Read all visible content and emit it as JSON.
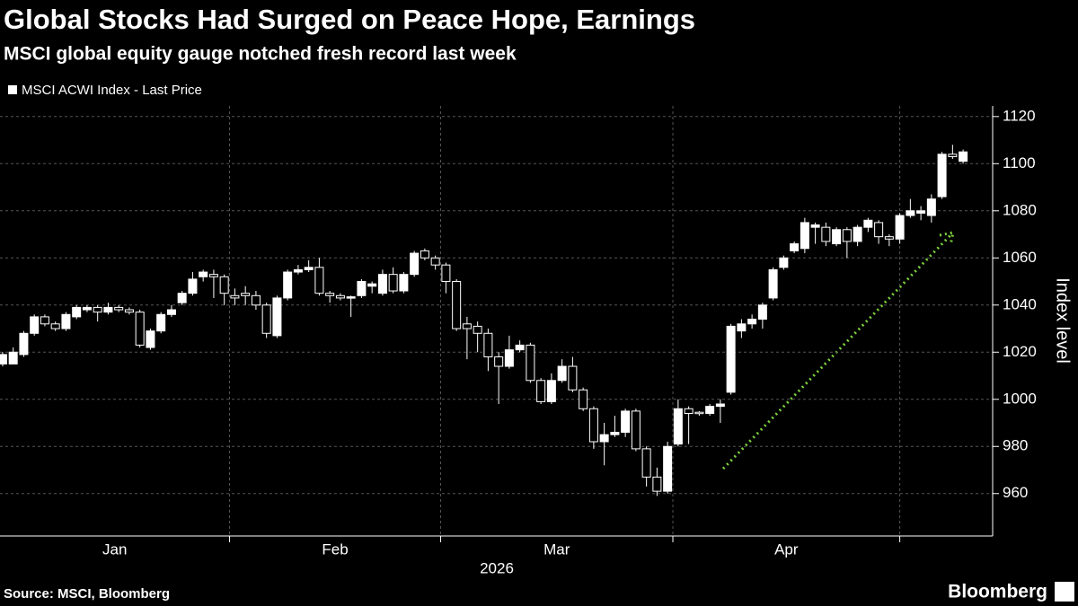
{
  "chart_data": {
    "type": "candlestick",
    "title": "Global Stocks Had Surged on Peace Hope, Earnings",
    "subtitle": "MSCI global equity gauge notched fresh record last week",
    "legend": "MSCI ACWI Index - Last Price",
    "y_label": "Index level",
    "x_label": "2026",
    "source": "Source: MSCI, Bloomberg",
    "brand": "Bloomberg",
    "color": "#ffffff",
    "grid": true,
    "ylim": [
      942,
      1124.5
    ],
    "yticks": [
      960,
      980,
      1000,
      1020,
      1040,
      1060,
      1080,
      1100,
      1120
    ],
    "xlim": [
      -0.25,
      93.8
    ],
    "xticks": [
      21.5,
      41.5,
      63.5,
      85
    ],
    "month_labels": [
      "Jan",
      "Feb",
      "Mar",
      "Apr"
    ],
    "open": [
      1015,
      1015,
      1019,
      1028,
      1035,
      1032,
      1030,
      1035,
      1038,
      1039,
      1037,
      1039,
      1038,
      1037,
      1022,
      1029,
      1036,
      1041,
      1045,
      1052,
      1053,
      1052,
      1044,
      1045,
      1044,
      1040,
      1027,
      1043,
      1054,
      1055,
      1056,
      1045,
      1044,
      1043,
      1044,
      1048,
      1045,
      1053,
      1046,
      1053,
      1063,
      1060,
      1057,
      1050,
      1032,
      1031,
      1028,
      1018,
      1014,
      1021,
      1023,
      1008,
      999,
      1008,
      1014,
      1004,
      996,
      982,
      985,
      986,
      995,
      979,
      967,
      961,
      981,
      996,
      994.5,
      994,
      997,
      1003,
      1029,
      1032,
      1034,
      1043,
      1056,
      1063,
      1064,
      1073,
      1073,
      1066,
      1072,
      1067,
      1073,
      1075,
      1069,
      1068,
      1078,
      1079,
      1078,
      1086,
      1104,
      1101
    ],
    "high": [
      1020,
      1022,
      1029,
      1036,
      1036,
      1033,
      1037,
      1040,
      1040,
      1040,
      1041,
      1040,
      1039,
      1038,
      1030,
      1037,
      1040,
      1046,
      1054,
      1055,
      1055,
      1053,
      1047,
      1048,
      1046,
      1041,
      1044,
      1055,
      1057,
      1059,
      1060,
      1046,
      1045,
      1044,
      1051,
      1050,
      1055,
      1056,
      1054,
      1063,
      1064,
      1061,
      1058,
      1051,
      1035,
      1033,
      1030,
      1020,
      1027,
      1025,
      1024,
      1009,
      1011,
      1017,
      1018,
      1005,
      997,
      990,
      993,
      996,
      996,
      980,
      971,
      982,
      1000,
      997,
      995,
      998,
      1000,
      1032,
      1034,
      1036,
      1041,
      1056,
      1061,
      1067,
      1077,
      1075,
      1075,
      1073,
      1073,
      1074,
      1077,
      1076,
      1070,
      1079,
      1085,
      1082,
      1087,
      1105,
      1108,
      1106
    ],
    "low": [
      1014,
      1015,
      1018,
      1027,
      1031,
      1029,
      1029,
      1034,
      1037,
      1033,
      1036,
      1037,
      1036,
      1022,
      1021,
      1028,
      1035,
      1040,
      1044,
      1050,
      1043,
      1040,
      1040,
      1040,
      1038,
      1026,
      1026,
      1042,
      1053,
      1054,
      1044,
      1041,
      1042,
      1035,
      1043,
      1045,
      1044,
      1045,
      1045,
      1052,
      1059,
      1055,
      1045,
      1029,
      1017,
      1020,
      1012,
      998,
      1013,
      1020,
      1007,
      998,
      998,
      1007,
      1003,
      995,
      979,
      972,
      984,
      984,
      978,
      963,
      959,
      960,
      980,
      981,
      993,
      993,
      990,
      1002,
      1026,
      1030,
      1030,
      1042,
      1055,
      1062,
      1062,
      1066,
      1065,
      1065,
      1060,
      1065,
      1071,
      1066,
      1065,
      1066,
      1077,
      1076,
      1075,
      1085,
      1102,
      1100
    ],
    "close": [
      1019,
      1020,
      1028,
      1035,
      1032,
      1030,
      1036,
      1039,
      1039,
      1037,
      1039,
      1038,
      1037,
      1023,
      1029,
      1036,
      1038,
      1045,
      1051,
      1054,
      1052,
      1045,
      1043,
      1044,
      1040,
      1028,
      1043,
      1054,
      1055,
      1056,
      1045,
      1044,
      1043,
      1043.5,
      1050,
      1049,
      1053,
      1046,
      1053,
      1062,
      1060,
      1057,
      1050,
      1030,
      1030,
      1028,
      1018,
      1014,
      1021,
      1023,
      1008,
      999,
      1008,
      1014,
      1004,
      996,
      982,
      985,
      986,
      995,
      979,
      967,
      961,
      980,
      996,
      994,
      994,
      997,
      998,
      1031,
      1032,
      1034,
      1040,
      1055,
      1060,
      1066,
      1075,
      1074,
      1067,
      1072,
      1067,
      1073,
      1076,
      1069,
      1068,
      1078,
      1080,
      1080,
      1085,
      1104,
      1103,
      1105
    ]
  }
}
